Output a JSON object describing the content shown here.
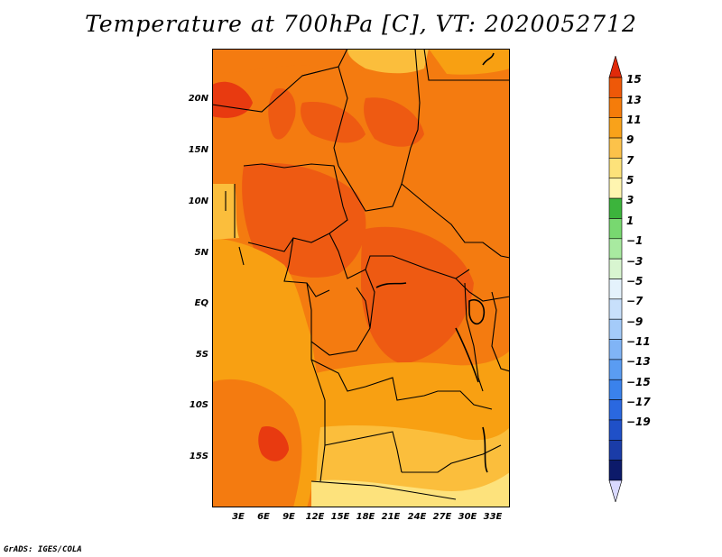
{
  "title": "Temperature at 700hPa [C], VT: 2020052712",
  "credit": "GrADS: IGES/COLA",
  "lat_labels": [
    "20N",
    "15N",
    "10N",
    "5N",
    "EQ",
    "5S",
    "10S",
    "15S"
  ],
  "lon_labels": [
    "3E",
    "6E",
    "9E",
    "12E",
    "15E",
    "18E",
    "21E",
    "24E",
    "27E",
    "30E",
    "33E"
  ],
  "colorbar": {
    "labels": [
      "15",
      "13",
      "11",
      "9",
      "7",
      "5",
      "3",
      "1",
      "−1",
      "−3",
      "−5",
      "−7",
      "−9",
      "−11",
      "−13",
      "−15",
      "−17",
      "−19"
    ],
    "colors": [
      "#d9d9ff",
      "#0c1a6a",
      "#1a3ca8",
      "#1f50c8",
      "#2a68e0",
      "#3a82ec",
      "#5a9cf2",
      "#80b4f6",
      "#a4cbf9",
      "#c8e0fb",
      "#e4f2fc",
      "#d8f5d0",
      "#a8eaa0",
      "#78d870",
      "#3cb43c",
      "#fff5b0",
      "#fde27a",
      "#fcc24a",
      "#f9a21a",
      "#f57c0a",
      "#ee5808",
      "#e02a0a"
    ]
  },
  "map": {
    "fill_colors": {
      "warm_13_15": "#ee5a12",
      "warm_11_13": "#f47b10",
      "warm_9_11": "#f8a012",
      "warm_7_9": "#fbbe3c",
      "warm_5_7": "#fde27c",
      "hot_15": "#e83a10"
    },
    "border_color": "#000000"
  }
}
